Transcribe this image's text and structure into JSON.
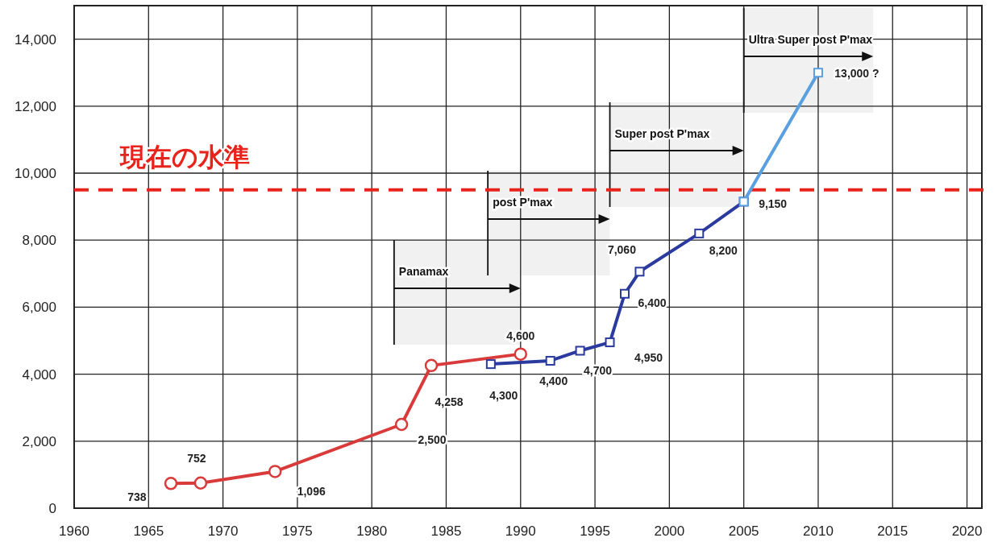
{
  "chart_data": {
    "type": "line",
    "xlim": [
      1960,
      2021
    ],
    "ylim": [
      0,
      15000
    ],
    "xticks": [
      1960,
      1965,
      1970,
      1975,
      1980,
      1985,
      1990,
      1995,
      2000,
      2005,
      2010,
      2015,
      2020
    ],
    "yticks": [
      0,
      {
        "value": 2000,
        "label": "2,000"
      },
      {
        "value": 4000,
        "label": "4,000"
      },
      {
        "value": 6000,
        "label": "6,000"
      },
      {
        "value": 8000,
        "label": "8,000"
      },
      {
        "value": 10000,
        "label": "10,000"
      },
      {
        "value": 12000,
        "label": "12,000"
      },
      {
        "value": 14000,
        "label": "14,000"
      }
    ],
    "grid": true,
    "series": [
      {
        "color": "#d93a3a",
        "marker": "circle",
        "x": [
          1966.5,
          1968.5,
          1973.5,
          1982,
          1984,
          1990
        ],
        "values": [
          738,
          752,
          1096,
          2500,
          4258,
          4600
        ],
        "value_labels": [
          "738",
          "752",
          "1,096",
          "2,500",
          "4,258",
          "4,600"
        ]
      },
      {
        "color": "#2b3a9e",
        "marker": "square",
        "x": [
          1988,
          1992,
          1994,
          1996,
          1997,
          1998,
          2002,
          2005
        ],
        "values": [
          4300,
          4400,
          4700,
          4950,
          6400,
          7060,
          8200,
          9150
        ],
        "value_labels": [
          "4,300",
          "4,400",
          "4,700",
          "4,950",
          "6,400",
          "7,060",
          "8,200",
          "9,150"
        ]
      },
      {
        "color": "#5aa0e0",
        "marker": "square",
        "x": [
          2005,
          2010
        ],
        "values": [
          9150,
          13000
        ],
        "value_labels": [
          null,
          "13,000 ?"
        ]
      }
    ],
    "ref_lines": [
      {
        "axis": "y",
        "value": 9500,
        "label": "現在の水準",
        "color": "#e8231c",
        "line_style": "dashed"
      }
    ],
    "bands": [
      {
        "axis": "x",
        "from": 1981.5,
        "to": 1990,
        "label": "Panamax",
        "color": "#f1f1f1"
      },
      {
        "axis": "x",
        "from": 1987.8,
        "to": 1996,
        "label": "post P'max",
        "color": "#f1f1f1"
      },
      {
        "axis": "x",
        "from": 1996,
        "to": 2005,
        "label": "Super  post P'max",
        "color": "#f1f1f1"
      },
      {
        "axis": "x",
        "from": 2005,
        "to": 2013.7,
        "label": "Ultra Super post P'max",
        "color": "#f1f1f1"
      }
    ]
  }
}
